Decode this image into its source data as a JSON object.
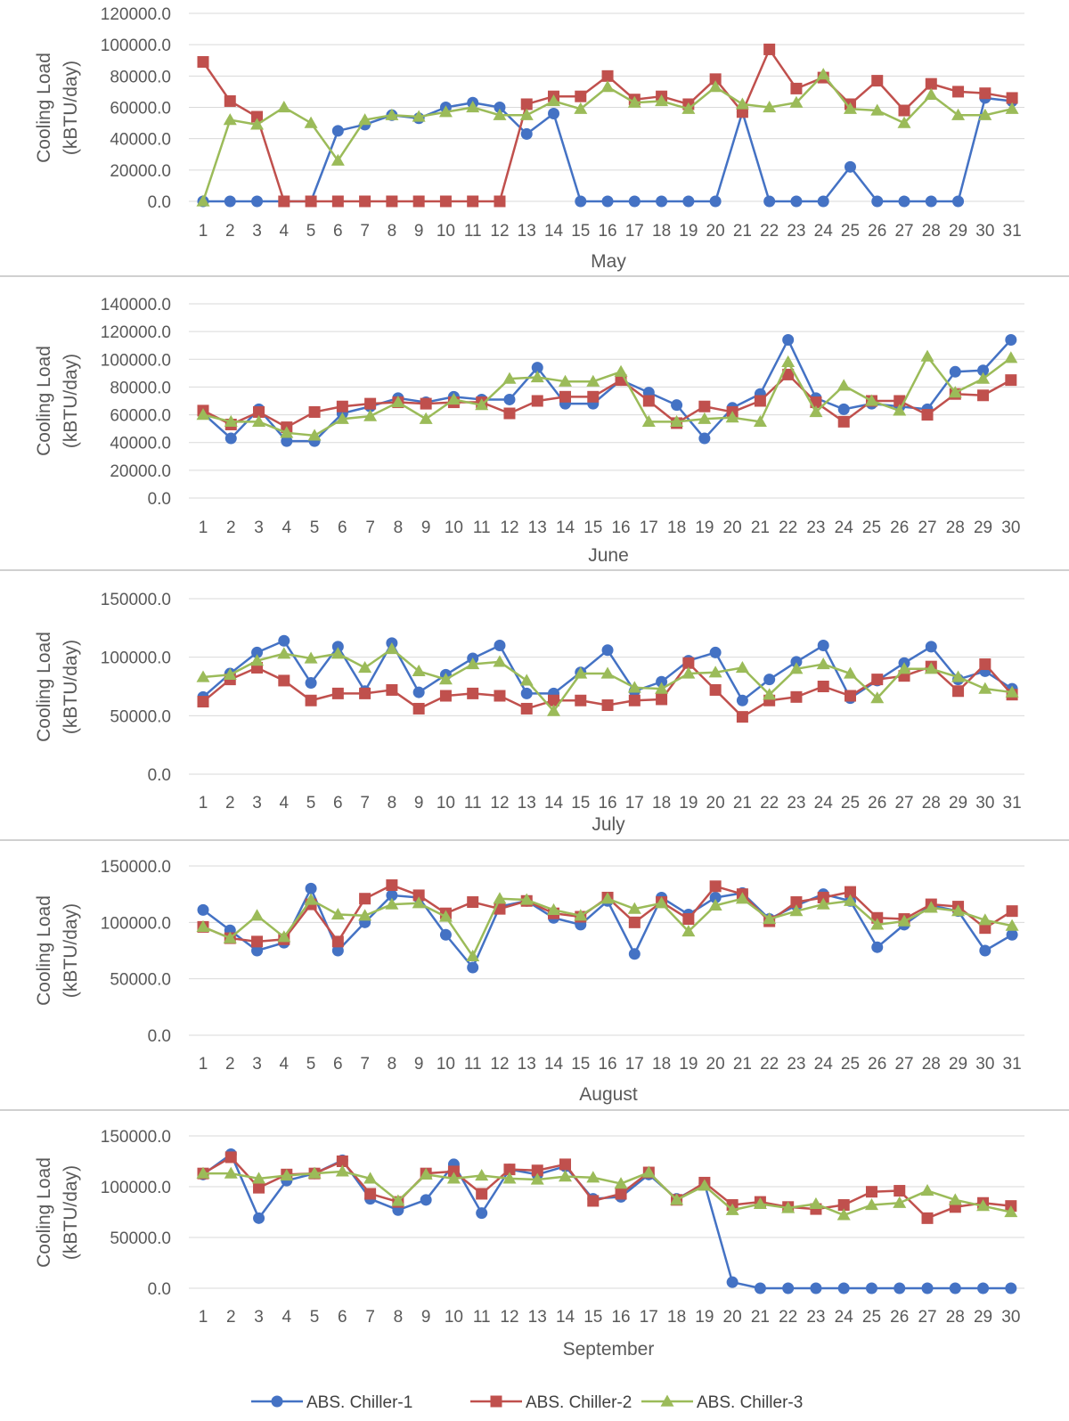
{
  "legend": {
    "placement": "bottom",
    "items": [
      {
        "label": "ABS. Chiller-1",
        "color": "#4472c4",
        "marker": "circle"
      },
      {
        "label": "ABS. Chiller-2",
        "color": "#c0504d",
        "marker": "square"
      },
      {
        "label": "ABS. Chiller-3",
        "color": "#9bbb59",
        "marker": "triangle"
      }
    ]
  },
  "chart_data": [
    {
      "type": "line",
      "xlabel": "May",
      "ylabel": [
        "Cooling Load",
        "(kBTU/day)"
      ],
      "ylim": [
        0,
        120000
      ],
      "yticks": [
        "0.0",
        "20000.0",
        "40000.0",
        "60000.0",
        "80000.0",
        "100000.0",
        "120000.0"
      ],
      "ytick_values": [
        0,
        20000,
        40000,
        60000,
        80000,
        100000,
        120000
      ],
      "grid": true,
      "x": [
        "1",
        "2",
        "3",
        "4",
        "5",
        "6",
        "7",
        "8",
        "9",
        "10",
        "11",
        "12",
        "13",
        "14",
        "15",
        "16",
        "17",
        "18",
        "19",
        "20",
        "21",
        "22",
        "23",
        "24",
        "25",
        "26",
        "27",
        "28",
        "29",
        "30",
        "31"
      ],
      "series": [
        {
          "name": "ABS. Chiller-1",
          "values": [
            0,
            0,
            0,
            0,
            0,
            45000,
            49000,
            55000,
            53000,
            60000,
            63000,
            60000,
            43000,
            56000,
            0,
            0,
            0,
            0,
            0,
            0,
            57000,
            0,
            0,
            0,
            22000,
            0,
            0,
            0,
            0,
            66000,
            64000
          ]
        },
        {
          "name": "ABS. Chiller-2",
          "values": [
            89000,
            64000,
            54000,
            0,
            0,
            0,
            0,
            0,
            0,
            0,
            0,
            0,
            62000,
            67000,
            67000,
            80000,
            65000,
            67000,
            62000,
            78000,
            57000,
            97000,
            72000,
            79000,
            62000,
            77000,
            58000,
            75000,
            70000,
            69000,
            66000
          ]
        },
        {
          "name": "ABS. Chiller-3",
          "values": [
            0,
            52000,
            49000,
            60000,
            50000,
            26000,
            52000,
            55000,
            54000,
            57000,
            60000,
            55000,
            55000,
            64000,
            59000,
            73000,
            63000,
            64000,
            59000,
            73000,
            62000,
            60000,
            63000,
            81000,
            59000,
            58000,
            50000,
            68000,
            55000,
            55000,
            59000
          ]
        }
      ]
    },
    {
      "type": "line",
      "xlabel": "June",
      "ylabel": [
        "Cooling Load",
        "(kBTU/day)"
      ],
      "ylim": [
        0,
        140000
      ],
      "yticks": [
        "0.0",
        "20000.0",
        "40000.0",
        "60000.0",
        "80000.0",
        "100000.0",
        "120000.0",
        "140000.0"
      ],
      "ytick_values": [
        0,
        20000,
        40000,
        60000,
        80000,
        100000,
        120000,
        140000
      ],
      "grid": true,
      "x": [
        "1",
        "2",
        "3",
        "4",
        "5",
        "6",
        "7",
        "8",
        "9",
        "10",
        "11",
        "12",
        "13",
        "14",
        "15",
        "16",
        "17",
        "18",
        "19",
        "20",
        "21",
        "22",
        "23",
        "24",
        "25",
        "26",
        "27",
        "28",
        "29",
        "30"
      ],
      "series": [
        {
          "name": "ABS. Chiller-1",
          "values": [
            61000,
            43000,
            64000,
            41000,
            41000,
            61000,
            66000,
            72000,
            69000,
            73000,
            71000,
            71000,
            94000,
            68000,
            68000,
            85000,
            76000,
            67000,
            43000,
            65000,
            75000,
            114000,
            72000,
            64000,
            68000,
            66000,
            64000,
            91000,
            92000,
            114000
          ]
        },
        {
          "name": "ABS. Chiller-2",
          "values": [
            63000,
            53000,
            62000,
            51000,
            62000,
            66000,
            68000,
            69000,
            68000,
            69000,
            69000,
            61000,
            70000,
            73000,
            73000,
            85000,
            70000,
            54000,
            66000,
            62000,
            70000,
            89000,
            69000,
            55000,
            70000,
            70000,
            60000,
            75000,
            74000,
            85000
          ]
        },
        {
          "name": "ABS. Chiller-3",
          "values": [
            60000,
            55000,
            55000,
            47000,
            45000,
            57000,
            59000,
            69000,
            57000,
            71000,
            67000,
            86000,
            87000,
            84000,
            84000,
            91000,
            55000,
            55000,
            57000,
            58000,
            55000,
            98000,
            62000,
            81000,
            70000,
            63000,
            102000,
            76000,
            86000,
            101000
          ]
        }
      ]
    },
    {
      "type": "line",
      "xlabel": "July",
      "ylabel": [
        "Cooling Load",
        "(kBTU/day)"
      ],
      "ylim": [
        0,
        150000
      ],
      "yticks": [
        "0.0",
        "50000.0",
        "100000.0",
        "150000.0"
      ],
      "ytick_values": [
        0,
        50000,
        100000,
        150000
      ],
      "grid": true,
      "x": [
        "1",
        "2",
        "3",
        "4",
        "5",
        "6",
        "7",
        "8",
        "9",
        "10",
        "11",
        "12",
        "13",
        "14",
        "15",
        "16",
        "17",
        "18",
        "19",
        "20",
        "21",
        "22",
        "23",
        "24",
        "25",
        "26",
        "27",
        "28",
        "29",
        "30",
        "31"
      ],
      "series": [
        {
          "name": "ABS. Chiller-1",
          "values": [
            66000,
            86000,
            104000,
            114000,
            78000,
            109000,
            71000,
            112000,
            70000,
            85000,
            99000,
            110000,
            69000,
            69000,
            87000,
            106000,
            71000,
            79000,
            97000,
            104000,
            63000,
            81000,
            96000,
            110000,
            65000,
            80000,
            95000,
            109000,
            81000,
            88000,
            73000
          ]
        },
        {
          "name": "ABS. Chiller-2",
          "values": [
            62000,
            81000,
            91000,
            80000,
            63000,
            69000,
            69000,
            72000,
            56000,
            67000,
            69000,
            67000,
            56000,
            63000,
            63000,
            59000,
            63000,
            64000,
            95000,
            72000,
            49000,
            63000,
            66000,
            75000,
            67000,
            81000,
            84000,
            92000,
            71000,
            94000,
            68000
          ]
        },
        {
          "name": "ABS. Chiller-3",
          "values": [
            83000,
            85000,
            97000,
            103000,
            99000,
            103000,
            91000,
            107000,
            88000,
            81000,
            94000,
            96000,
            80000,
            54000,
            86000,
            86000,
            74000,
            73000,
            86000,
            87000,
            91000,
            68000,
            90000,
            94000,
            86000,
            65000,
            90000,
            90000,
            83000,
            73000,
            70000
          ]
        }
      ]
    },
    {
      "type": "line",
      "xlabel": "August",
      "ylabel": [
        "Cooling Load",
        "(kBTU/day)"
      ],
      "ylim": [
        0,
        150000
      ],
      "yticks": [
        "0.0",
        "50000.0",
        "100000.0",
        "150000.0"
      ],
      "ytick_values": [
        0,
        50000,
        100000,
        150000
      ],
      "grid": true,
      "x": [
        "1",
        "2",
        "3",
        "4",
        "5",
        "6",
        "7",
        "8",
        "9",
        "10",
        "11",
        "12",
        "13",
        "14",
        "15",
        "16",
        "17",
        "18",
        "19",
        "20",
        "21",
        "22",
        "23",
        "24",
        "25",
        "26",
        "27",
        "28",
        "29",
        "30",
        "31"
      ],
      "series": [
        {
          "name": "ABS. Chiller-1",
          "values": [
            111000,
            93000,
            75000,
            82000,
            130000,
            75000,
            100000,
            124000,
            122000,
            89000,
            60000,
            114000,
            119000,
            104000,
            98000,
            119000,
            72000,
            122000,
            107000,
            122000,
            126000,
            103000,
            115000,
            125000,
            119000,
            78000,
            98000,
            115000,
            110000,
            75000,
            89000
          ]
        },
        {
          "name": "ABS. Chiller-2",
          "values": [
            96000,
            86000,
            83000,
            85000,
            116000,
            83000,
            121000,
            133000,
            124000,
            108000,
            118000,
            112000,
            119000,
            108000,
            105000,
            122000,
            100000,
            118000,
            103000,
            132000,
            125000,
            101000,
            118000,
            122000,
            127000,
            104000,
            103000,
            116000,
            114000,
            95000,
            110000
          ]
        },
        {
          "name": "ABS. Chiller-3",
          "values": [
            96000,
            86000,
            106000,
            87000,
            120000,
            107000,
            106000,
            116000,
            117000,
            105000,
            70000,
            121000,
            120000,
            111000,
            106000,
            121000,
            112000,
            117000,
            92000,
            115000,
            121000,
            103000,
            110000,
            116000,
            119000,
            98000,
            101000,
            113000,
            110000,
            102000,
            97000
          ]
        }
      ]
    },
    {
      "type": "line",
      "xlabel": "September",
      "ylabel": [
        "Cooling Load",
        "(kBTU/day)"
      ],
      "ylim": [
        0,
        150000
      ],
      "yticks": [
        "0.0",
        "50000.0",
        "100000.0",
        "150000.0"
      ],
      "ytick_values": [
        0,
        50000,
        100000,
        150000
      ],
      "grid": true,
      "x": [
        "1",
        "2",
        "3",
        "4",
        "5",
        "6",
        "7",
        "8",
        "9",
        "10",
        "11",
        "12",
        "13",
        "14",
        "15",
        "16",
        "17",
        "18",
        "19",
        "20",
        "21",
        "22",
        "23",
        "24",
        "25",
        "26",
        "27",
        "28",
        "29",
        "30"
      ],
      "series": [
        {
          "name": "ABS. Chiller-1",
          "values": [
            112000,
            132000,
            69000,
            106000,
            113000,
            126000,
            88000,
            77000,
            87000,
            122000,
            74000,
            117000,
            112000,
            120000,
            88000,
            90000,
            112000,
            88000,
            103000,
            6000,
            0,
            0,
            0,
            0,
            0,
            0,
            0,
            0,
            0,
            0
          ]
        },
        {
          "name": "ABS. Chiller-2",
          "values": [
            113000,
            129000,
            99000,
            112000,
            113000,
            125000,
            93000,
            85000,
            113000,
            115000,
            93000,
            117000,
            116000,
            122000,
            86000,
            93000,
            114000,
            87000,
            104000,
            82000,
            85000,
            80000,
            78000,
            82000,
            95000,
            96000,
            69000,
            80000,
            84000,
            81000
          ]
        },
        {
          "name": "ABS. Chiller-3",
          "values": [
            113000,
            113000,
            108000,
            111000,
            113000,
            115000,
            108000,
            86000,
            112000,
            108000,
            111000,
            108000,
            107000,
            110000,
            109000,
            103000,
            114000,
            87000,
            101000,
            77000,
            83000,
            79000,
            83000,
            72000,
            82000,
            84000,
            96000,
            87000,
            81000,
            75000
          ]
        }
      ]
    }
  ]
}
